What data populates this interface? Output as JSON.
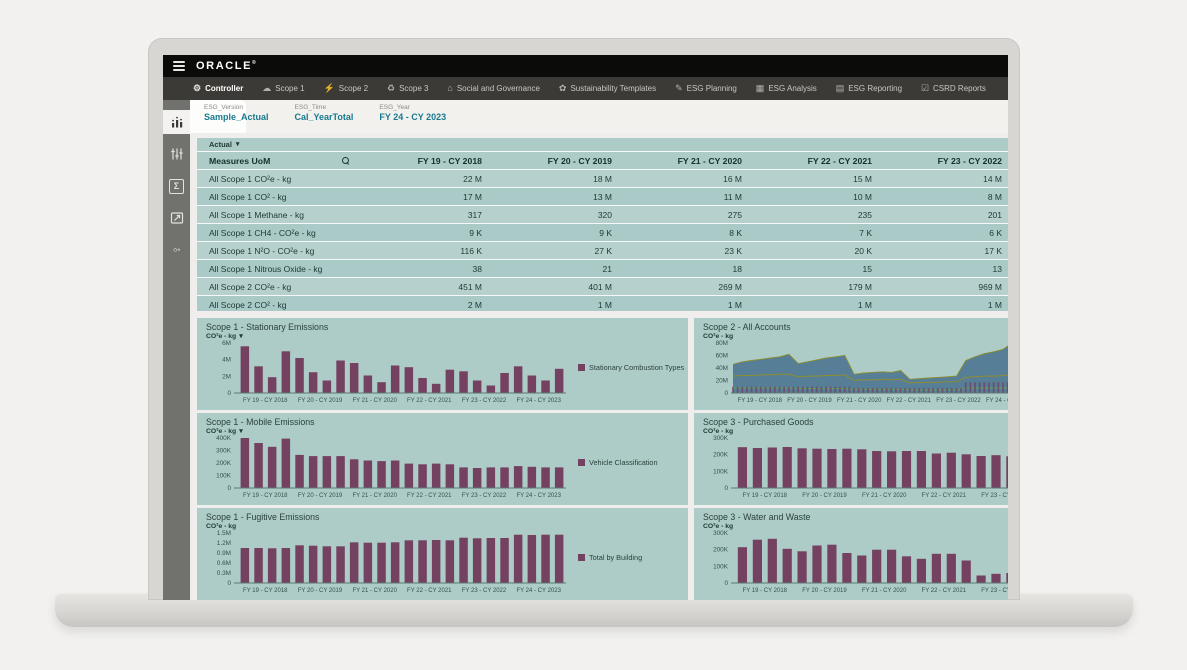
{
  "header": {
    "brand": "ORACLE",
    "reg": "®"
  },
  "nav": {
    "tabs": [
      {
        "label": "Controller",
        "icon": "controller-icon",
        "glyph": "⚙",
        "active": true
      },
      {
        "label": "Scope 1",
        "icon": "scope1-icon",
        "glyph": "☁",
        "active": false
      },
      {
        "label": "Scope 2",
        "icon": "scope2-icon",
        "glyph": "⚡",
        "active": false
      },
      {
        "label": "Scope 3",
        "icon": "scope3-icon",
        "glyph": "♻",
        "active": false
      },
      {
        "label": "Social and Governance",
        "icon": "social-governance-icon",
        "glyph": "⌂",
        "active": false
      },
      {
        "label": "Sustainability Templates",
        "icon": "sustainability-templates-icon",
        "glyph": "✿",
        "active": false
      },
      {
        "label": "ESG Planning",
        "icon": "esg-planning-icon",
        "glyph": "✎",
        "active": false
      },
      {
        "label": "ESG Analysis",
        "icon": "esg-analysis-icon",
        "glyph": "▦",
        "active": false
      },
      {
        "label": "ESG Reporting",
        "icon": "esg-reporting-icon",
        "glyph": "▤",
        "active": false
      },
      {
        "label": "CSRD Reports",
        "icon": "csrd-reports-icon",
        "glyph": "☑",
        "active": false
      }
    ]
  },
  "sidebar": {
    "items": [
      {
        "icon": "analysis-icon",
        "active": true
      },
      {
        "icon": "filters-icon",
        "active": false
      },
      {
        "icon": "formula-icon",
        "active": false
      },
      {
        "icon": "snapshot-icon",
        "active": false
      },
      {
        "icon": "key-icon",
        "active": false
      }
    ]
  },
  "pov": {
    "items": [
      {
        "dim": "ESG_Version",
        "member": "Sample_Actual"
      },
      {
        "dim": "ESG_Time",
        "member": "Cal_YearTotal"
      },
      {
        "dim": "ESG_Year",
        "member": "FY 24 - CY 2023"
      }
    ]
  },
  "grid": {
    "filter_label": "Actual",
    "header": {
      "measure_col": "Measures UoM",
      "years": [
        "FY 19 - CY 2018",
        "FY 20 - CY 2019",
        "FY 21 - CY 2020",
        "FY 22 - CY 2021",
        "FY 23 - CY 2022"
      ]
    },
    "rows": [
      {
        "measure": "All Scope 1 CO²e - kg",
        "values": [
          "22 M",
          "18 M",
          "16 M",
          "15 M",
          "14 M"
        ]
      },
      {
        "measure": "All Scope 1 CO² - kg",
        "values": [
          "17 M",
          "13 M",
          "11 M",
          "10 M",
          "8 M"
        ]
      },
      {
        "measure": "All Scope 1 Methane - kg",
        "values": [
          "317",
          "320",
          "275",
          "235",
          "201"
        ]
      },
      {
        "measure": "All Scope 1 CH4 - CO²e - kg",
        "values": [
          "9 K",
          "9 K",
          "8 K",
          "7 K",
          "6 K"
        ]
      },
      {
        "measure": "All Scope 1 N²O - CO²e - kg",
        "values": [
          "116 K",
          "27 K",
          "23 K",
          "20 K",
          "17 K"
        ]
      },
      {
        "measure": "All Scope 1 Nitrous Oxide - kg",
        "values": [
          "38",
          "21",
          "18",
          "15",
          "13"
        ]
      },
      {
        "measure": "All Scope 2 CO²e - kg",
        "values": [
          "451 M",
          "401 M",
          "269 M",
          "179 M",
          "969 M"
        ]
      },
      {
        "measure": "All Scope 2 CO² - kg",
        "values": [
          "2 M",
          "1 M",
          "1 M",
          "1 M",
          "1 M"
        ]
      },
      {
        "measure": "All Scope 3 CO²e - kg",
        "values": [
          "2 M",
          "2 M",
          "2 M",
          "1 M",
          "67 M"
        ]
      }
    ]
  },
  "chart_data": [
    {
      "type": "bar",
      "title": "Scope 1 - Stationary Emissions",
      "uom": "CO²e - kg",
      "uom_dropdown": true,
      "unit": "M",
      "ylim": [
        0,
        6
      ],
      "ytick_vals": [
        0,
        2,
        4,
        6
      ],
      "ytick_labels": [
        "0",
        "2M",
        "4M",
        "6M"
      ],
      "categories": [
        "FY 19 - CY 2018",
        "FY 20 - CY 2019",
        "FY 21 - CY 2020",
        "FY 22 - CY 2021",
        "FY 23 - CY 2022",
        "FY 24 - CY 2023"
      ],
      "values": [
        5.6,
        3.2,
        1.9,
        5.0,
        4.2,
        2.5,
        1.5,
        3.9,
        3.6,
        2.1,
        1.3,
        3.3,
        3.1,
        1.8,
        1.1,
        2.8,
        2.6,
        1.5,
        0.9,
        2.4,
        3.2,
        2.1,
        1.5,
        2.9
      ],
      "legend": "Stationary Combustion Types",
      "bar_color": "#744161"
    },
    {
      "type": "area",
      "title": "Scope 2 - All Accounts",
      "uom": "CO²e - kg",
      "uom_dropdown": false,
      "unit": "M",
      "ylim": [
        0,
        80
      ],
      "ytick_vals": [
        0,
        20,
        40,
        60,
        80
      ],
      "ytick_labels": [
        "0",
        "20M",
        "40M",
        "60M",
        "80M"
      ],
      "categories": [
        "FY 19 - CY 2018",
        "FY 20 - CY 2019",
        "FY 21 - CY 2020",
        "FY 22 - CY 2021",
        "FY 23 - CY 2022",
        "FY 24 - CY 2023"
      ],
      "legend": null,
      "series": [
        {
          "name": "total-area",
          "type": "area",
          "color": "#4e7792",
          "edge": "#8e8e2f",
          "values": [
            46,
            50,
            52,
            54,
            56,
            58,
            62,
            47,
            50,
            53,
            56,
            58,
            60,
            30,
            32,
            33,
            34,
            33,
            36,
            22,
            23,
            24,
            25,
            26,
            27,
            52,
            58,
            63,
            66,
            70,
            80,
            24,
            26
          ]
        },
        {
          "name": "mid-line",
          "type": "line",
          "color": "#8e8e2f",
          "values": [
            27,
            28,
            28,
            29,
            29,
            30,
            30,
            26,
            27,
            27,
            28,
            28,
            29,
            20,
            21,
            21,
            22,
            21,
            22,
            16,
            17,
            17,
            17,
            18,
            18,
            25,
            26,
            27,
            27,
            28,
            30,
            19,
            20
          ]
        },
        {
          "name": "low-line",
          "type": "line",
          "color": "#66a15c",
          "values": [
            8,
            8,
            8,
            8,
            8,
            8,
            8,
            7,
            7,
            7,
            7,
            7,
            7,
            6,
            6,
            6,
            6,
            6,
            6,
            5,
            5,
            5,
            5,
            5,
            5,
            8,
            8,
            8,
            8,
            8,
            8,
            6,
            6
          ]
        },
        {
          "name": "bottom-bars",
          "type": "bars",
          "color": "#744161",
          "values": [
            10,
            10,
            10,
            10,
            10,
            10,
            10,
            10,
            10,
            10,
            10,
            10,
            10,
            8,
            8,
            8,
            8,
            8,
            8,
            8,
            8,
            8,
            8,
            8,
            8,
            17,
            17,
            17,
            17,
            17,
            17,
            8,
            8
          ]
        }
      ]
    },
    {
      "type": "bar",
      "title": "Scope 1 - Mobile Emissions",
      "uom": "CO²e - kg",
      "uom_dropdown": true,
      "unit": "K",
      "ylim": [
        0,
        400
      ],
      "ytick_vals": [
        0,
        100,
        200,
        300,
        400
      ],
      "ytick_labels": [
        "0",
        "100K",
        "200K",
        "300K",
        "400K"
      ],
      "categories": [
        "FY 19 - CY 2018",
        "FY 20 - CY 2019",
        "FY 21 - CY 2020",
        "FY 22 - CY 2021",
        "FY 23 - CY 2022",
        "FY 24 - CY 2023"
      ],
      "values": [
        400,
        360,
        330,
        395,
        265,
        255,
        255,
        255,
        230,
        220,
        215,
        220,
        195,
        190,
        195,
        190,
        165,
        160,
        165,
        165,
        175,
        170,
        165,
        165
      ],
      "legend": "Vehicle Classification",
      "bar_color": "#744161"
    },
    {
      "type": "bar",
      "title": "Scope 3 - Purchased Goods",
      "uom": "CO²e - kg",
      "uom_dropdown": false,
      "unit": "K",
      "ylim": [
        0,
        300
      ],
      "ytick_vals": [
        0,
        100,
        200,
        300
      ],
      "ytick_labels": [
        "0",
        "100K",
        "200K",
        "300K"
      ],
      "categories": [
        "FY 19 - CY 2018",
        "FY 20 - CY 2019",
        "FY 21 - CY 2020",
        "FY 22 - CY 2021",
        "FY 23 - CY 2022",
        "FY 24 - CY 2023"
      ],
      "values": [
        245,
        240,
        243,
        246,
        238,
        236,
        234,
        236,
        232,
        222,
        220,
        222,
        222,
        207,
        212,
        202,
        192,
        197,
        190,
        193,
        188,
        190,
        186,
        189
      ],
      "legend": null,
      "bar_color": "#744161"
    },
    {
      "type": "bar",
      "title": "Scope 1 - Fugitive Emissions",
      "uom": "CO²e - kg",
      "uom_dropdown": false,
      "unit": "M",
      "ylim": [
        0,
        1.5
      ],
      "ytick_vals": [
        0,
        0.3,
        0.6,
        0.9,
        1.2,
        1.5
      ],
      "ytick_labels": [
        "0",
        "0.3M",
        "0.6M",
        "0.9M",
        "1.2M",
        "1.5M"
      ],
      "categories": [
        "FY 19 - CY 2018",
        "FY 20 - CY 2019",
        "FY 21 - CY 2020",
        "FY 22 - CY 2021",
        "FY 23 - CY 2022",
        "FY 24 - CY 2023"
      ],
      "values": [
        1.05,
        1.05,
        1.04,
        1.05,
        1.13,
        1.12,
        1.1,
        1.1,
        1.22,
        1.21,
        1.21,
        1.22,
        1.28,
        1.28,
        1.29,
        1.28,
        1.36,
        1.34,
        1.35,
        1.35,
        1.45,
        1.44,
        1.45,
        1.45
      ],
      "legend": "Total by Building",
      "bar_color": "#744161"
    },
    {
      "type": "bar",
      "title": "Scope 3 - Water and Waste",
      "uom": "CO²e - kg",
      "uom_dropdown": false,
      "unit": "K",
      "ylim": [
        0,
        300
      ],
      "ytick_vals": [
        0,
        100,
        200,
        300
      ],
      "ytick_labels": [
        "0",
        "100K",
        "200K",
        "300K"
      ],
      "categories": [
        "FY 19 - CY 2018",
        "FY 20 - CY 2019",
        "FY 21 - CY 2020",
        "FY 22 - CY 2021",
        "FY 23 - CY 2022",
        "FY 24 - CY 2023"
      ],
      "values": [
        215,
        260,
        265,
        205,
        190,
        225,
        230,
        180,
        165,
        200,
        200,
        160,
        145,
        175,
        175,
        135,
        45,
        55,
        60,
        50,
        55,
        45,
        50,
        40
      ],
      "legend": null,
      "bar_color": "#744161"
    }
  ],
  "colors": {
    "panel_teal": "#adccc8",
    "row_light": "#b6d1cd",
    "row_dark": "#a9cac6",
    "bar_plum": "#744161",
    "area_slate": "#4e7792",
    "line_olive": "#8e8e2f",
    "line_green": "#66a15c",
    "pov_accent": "#17798e",
    "topbar_black": "#0b0b0a",
    "tabbar_gray": "#3b3a37",
    "sidebar_gray": "#71716d"
  }
}
